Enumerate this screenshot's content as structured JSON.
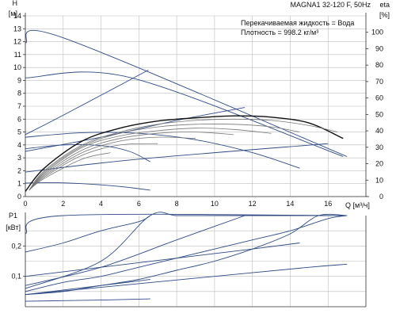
{
  "header": {
    "title": "MAGNA1 32-120 F, 50Hz",
    "liquid_note": "Перекачиваемая жидкость = Вода",
    "density_note": "Плотность = 998.2 кг/м³"
  },
  "chart_data": [
    {
      "id": "head",
      "type": "line",
      "xlabel": "Q [м³/ч]",
      "ylabel": "H",
      "yunit": "[м]",
      "ylabel2": "eta",
      "yunit2": "[%]",
      "xlim": [
        0,
        18
      ],
      "ylim": [
        0,
        14
      ],
      "y2lim": [
        0,
        110
      ],
      "grid": true,
      "x_ticks": [
        0,
        2,
        4,
        6,
        8,
        10,
        12,
        14,
        16
      ],
      "y_ticks": [
        0,
        1,
        2,
        3,
        4,
        5,
        6,
        7,
        8,
        9,
        10,
        11,
        12,
        13,
        14
      ],
      "y2_ticks": [
        0,
        10,
        20,
        30,
        40,
        50,
        60,
        70,
        80,
        90,
        100
      ],
      "series": [
        {
          "role": "head",
          "color": "#2f4a86",
          "width": 0.9,
          "x": [
            0,
            2,
            17
          ],
          "y": [
            11.9,
            12.3,
            3.1
          ]
        },
        {
          "role": "head",
          "color": "#2f4a86",
          "width": 0.9,
          "x": [
            0,
            5.6,
            16.8
          ],
          "y": [
            9.2,
            9.2,
            3.1
          ]
        },
        {
          "role": "head",
          "color": "#2f4a86",
          "width": 0.9,
          "x": [
            0,
            2,
            6.5
          ],
          "y": [
            4.8,
            6.3,
            9.8
          ]
        },
        {
          "role": "head",
          "color": "#2f4a86",
          "width": 0.9,
          "x": [
            0,
            4,
            8,
            11.6
          ],
          "y": [
            3.5,
            4.6,
            5.9,
            6.9
          ]
        },
        {
          "role": "head",
          "color": "#2f4a86",
          "width": 0.9,
          "x": [
            0,
            6,
            16
          ],
          "y": [
            1.9,
            2.9,
            4.1
          ]
        },
        {
          "role": "head",
          "color": "#2f4a86",
          "width": 0.9,
          "x": [
            0,
            3,
            6,
            9,
            12,
            14.5
          ],
          "y": [
            4.6,
            4.95,
            4.9,
            4.4,
            3.4,
            2.2
          ]
        },
        {
          "role": "head",
          "color": "#2f4a86",
          "width": 0.9,
          "x": [
            0,
            2,
            4,
            5.5,
            6.6
          ],
          "y": [
            3.7,
            4.0,
            3.95,
            3.5,
            2.7
          ]
        },
        {
          "role": "head",
          "color": "#2f4a86",
          "width": 0.9,
          "x": [
            0,
            1.5,
            3,
            4.5,
            5.5,
            6.6
          ],
          "y": [
            1.05,
            1.08,
            1.0,
            0.85,
            0.7,
            0.5
          ]
        },
        {
          "role": "efficiency",
          "color": "#111111",
          "width": 1.4,
          "x": [
            0,
            1,
            3,
            5,
            7,
            9,
            11,
            13,
            15,
            16.8
          ],
          "y": [
            0.4,
            2.2,
            4.3,
            5.3,
            5.85,
            6.1,
            6.25,
            6.15,
            5.7,
            4.5
          ]
        },
        {
          "role": "efficiency",
          "color": "#777777",
          "width": 0.8,
          "x": [
            0.2,
            1,
            3,
            5,
            7,
            9,
            11,
            13,
            15,
            16.5
          ],
          "y": [
            0.5,
            2.0,
            4.0,
            5.0,
            5.6,
            5.9,
            6.0,
            5.9,
            5.5,
            5.0
          ]
        },
        {
          "role": "efficiency",
          "color": "#777777",
          "width": 0.8,
          "x": [
            0.2,
            1,
            3,
            5,
            7,
            9,
            11,
            13,
            14.5
          ],
          "y": [
            0.5,
            1.9,
            3.9,
            4.9,
            5.4,
            5.6,
            5.6,
            5.4,
            5.0
          ]
        },
        {
          "role": "efficiency",
          "color": "#777777",
          "width": 0.8,
          "x": [
            0.2,
            1,
            3,
            5,
            7,
            9,
            11,
            13
          ],
          "y": [
            0.5,
            1.8,
            3.8,
            4.7,
            5.1,
            5.3,
            5.2,
            4.9
          ]
        },
        {
          "role": "efficiency",
          "color": "#777777",
          "width": 0.8,
          "x": [
            0.2,
            1,
            3,
            5,
            7,
            9,
            11
          ],
          "y": [
            0.5,
            1.7,
            3.6,
            4.5,
            4.9,
            5.0,
            4.8
          ]
        },
        {
          "role": "efficiency",
          "color": "#777777",
          "width": 0.8,
          "x": [
            0.2,
            1,
            3,
            5,
            7,
            9
          ],
          "y": [
            0.5,
            1.6,
            3.4,
            4.3,
            4.6,
            4.5
          ]
        },
        {
          "role": "efficiency",
          "color": "#777777",
          "width": 0.8,
          "x": [
            0.2,
            1,
            3,
            5,
            7
          ],
          "y": [
            0.5,
            1.5,
            3.2,
            4.0,
            4.1
          ]
        },
        {
          "role": "efficiency",
          "color": "#777777",
          "width": 0.8,
          "x": [
            0.2,
            1,
            3,
            4.5
          ],
          "y": [
            0.5,
            1.4,
            2.9,
            3.4
          ]
        }
      ]
    },
    {
      "id": "power",
      "type": "line",
      "xlabel": "",
      "ylabel": "P1",
      "yunit": "[кВт]",
      "xlim": [
        0,
        18
      ],
      "ylim": [
        0,
        0.3
      ],
      "grid": true,
      "x_ticks": [
        0,
        2,
        4,
        6,
        8,
        10,
        12,
        14,
        16
      ],
      "y_ticks": [
        0.1,
        0.2
      ],
      "y_tick_labels": [
        "0,1",
        "0,2"
      ],
      "series": [
        {
          "color": "#2f4a86",
          "width": 0.9,
          "x": [
            0,
            2,
            17
          ],
          "y": [
            0.24,
            0.3,
            0.3
          ]
        },
        {
          "color": "#2f4a86",
          "width": 0.9,
          "x": [
            0,
            2,
            4,
            6,
            8,
            10,
            12,
            14,
            16,
            17
          ],
          "y": [
            0.05,
            0.08,
            0.1,
            0.13,
            0.16,
            0.19,
            0.22,
            0.25,
            0.29,
            0.3
          ]
        },
        {
          "color": "#2f4a86",
          "width": 0.9,
          "x": [
            0,
            2,
            4,
            6,
            8,
            10,
            12,
            14,
            15.5,
            17
          ],
          "y": [
            0.04,
            0.05,
            0.07,
            0.09,
            0.12,
            0.15,
            0.19,
            0.24,
            0.3,
            0.3
          ]
        },
        {
          "color": "#2f4a86",
          "width": 0.9,
          "x": [
            0,
            5,
            10,
            15,
            17
          ],
          "y": [
            0.04,
            0.07,
            0.1,
            0.13,
            0.14
          ]
        },
        {
          "color": "#2f4a86",
          "width": 0.9,
          "x": [
            0,
            4,
            6.6,
            8,
            10,
            12,
            14,
            17
          ],
          "y": [
            0.06,
            0.15,
            0.3,
            0.3,
            0.3,
            0.3,
            0.3,
            0.3
          ]
        },
        {
          "color": "#2f4a86",
          "width": 0.9,
          "x": [
            0,
            2,
            4,
            6,
            6.6
          ],
          "y": [
            0.18,
            0.21,
            0.25,
            0.28,
            0.3
          ]
        },
        {
          "color": "#2f4a86",
          "width": 0.9,
          "x": [
            0,
            4,
            8,
            12,
            14.5
          ],
          "y": [
            0.1,
            0.13,
            0.16,
            0.19,
            0.21
          ]
        },
        {
          "color": "#2f4a86",
          "width": 0.9,
          "x": [
            0,
            4,
            8,
            11.6
          ],
          "y": [
            0.07,
            0.13,
            0.22,
            0.3
          ]
        },
        {
          "color": "#2f4a86",
          "width": 0.9,
          "x": [
            0,
            2,
            4,
            6,
            6.6
          ],
          "y": [
            0.04,
            0.055,
            0.07,
            0.085,
            0.09
          ]
        },
        {
          "color": "#2f4a86",
          "width": 0.9,
          "x": [
            0,
            2,
            4,
            6,
            6.6
          ],
          "y": [
            0.018,
            0.02,
            0.022,
            0.025,
            0.026
          ]
        }
      ]
    }
  ]
}
